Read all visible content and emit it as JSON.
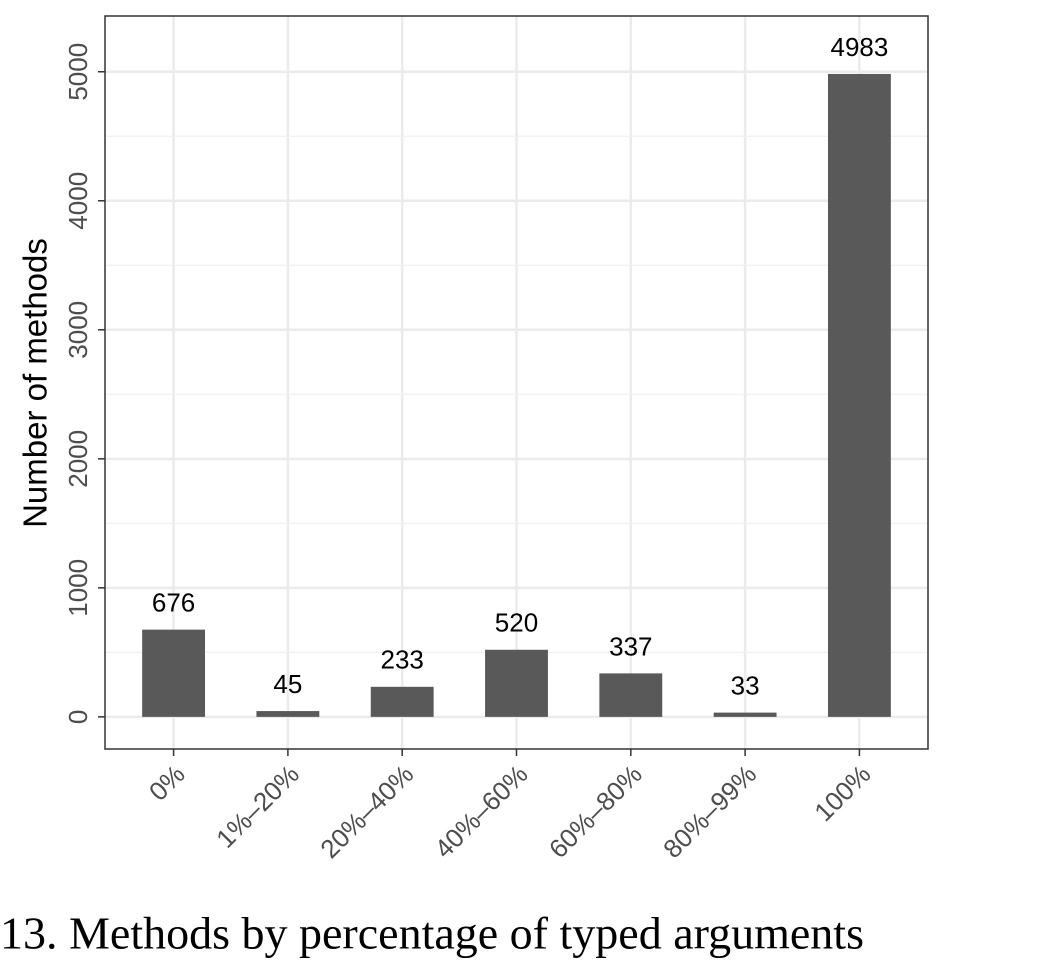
{
  "chart_data": {
    "type": "bar",
    "y_label": "Number of methods",
    "caption": "13.  Methods by percentage of typed arguments",
    "categories": [
      "0%",
      "1%–20%",
      "20%–40%",
      "40%–60%",
      "60%–80%",
      "80%–99%",
      "100%"
    ],
    "values": [
      676,
      45,
      233,
      520,
      337,
      33,
      4983
    ],
    "color": "#595959",
    "ylim": [
      -249,
      5432
    ],
    "yticks": [
      0,
      1000,
      2000,
      3000,
      4000,
      5000
    ],
    "grid": true
  }
}
